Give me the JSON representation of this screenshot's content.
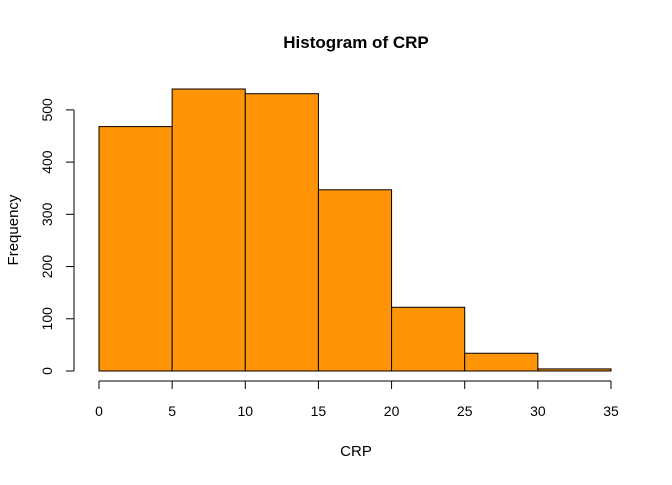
{
  "chart_data": {
    "type": "bar",
    "subtype": "histogram",
    "title": "Histogram of CRP",
    "xlabel": "CRP",
    "ylabel": "Frequency",
    "bin_edges": [
      0,
      5,
      10,
      15,
      20,
      25,
      30,
      35
    ],
    "values": [
      468,
      540,
      531,
      347,
      122,
      34,
      4
    ],
    "xlim": [
      0,
      35
    ],
    "ylim": [
      0,
      540
    ],
    "x_ticks": [
      0,
      5,
      10,
      15,
      20,
      25,
      30,
      35
    ],
    "y_ticks": [
      0,
      100,
      200,
      300,
      400,
      500
    ],
    "bar_color": "#FF9407",
    "bar_edge_color": "#000000",
    "grid": false,
    "legend": "none"
  }
}
